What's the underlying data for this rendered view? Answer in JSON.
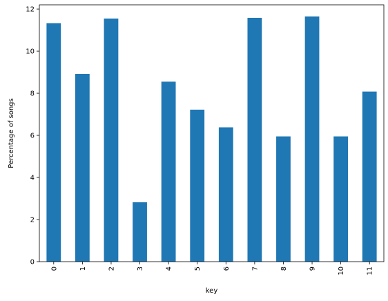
{
  "chart_data": {
    "type": "bar",
    "categories": [
      "0",
      "1",
      "2",
      "3",
      "4",
      "5",
      "6",
      "7",
      "8",
      "9",
      "10",
      "11"
    ],
    "values": [
      11.33,
      8.92,
      11.55,
      2.82,
      8.55,
      7.22,
      6.38,
      11.58,
      5.95,
      11.65,
      5.95,
      8.08
    ],
    "title": "",
    "xlabel": "key",
    "ylabel": "Percentage of songs",
    "ylim": [
      0,
      12.2
    ],
    "yticks": [
      0,
      2,
      4,
      6,
      8,
      10,
      12
    ],
    "bar_color": "#1f77b4",
    "grid": false,
    "legend": "none"
  }
}
